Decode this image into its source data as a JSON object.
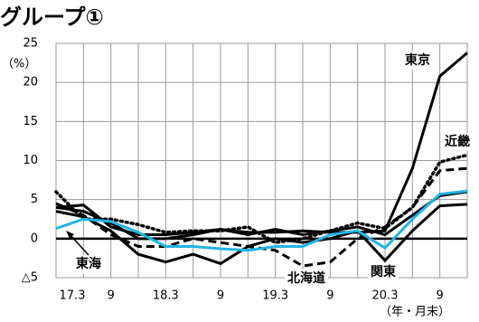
{
  "chart_data": {
    "type": "line",
    "title": "グループ①",
    "y_label": "（%）",
    "x_label": "（年・月末）",
    "categories": [
      "17.3",
      null,
      "9",
      null,
      "18.3",
      null,
      "9",
      null,
      "19.3",
      null,
      "9",
      null,
      "20.3",
      null,
      "9",
      null
    ],
    "ylim": [
      -5,
      25
    ],
    "yticks": [
      {
        "value": -5,
        "label": "△5"
      },
      0,
      5,
      10,
      15,
      20,
      25
    ],
    "grid": true,
    "series": [
      {
        "name": "東京",
        "color": "#000000",
        "style": "solid",
        "values": [
          4,
          4.3,
          1.5,
          0.5,
          0.5,
          0.8,
          1.2,
          0.8,
          0.8,
          1,
          0.8,
          0.8,
          1,
          9,
          20.8,
          23.8
        ]
      },
      {
        "name": "近畿",
        "color": "#000000",
        "style": "dotted",
        "values": [
          6,
          2.5,
          2.5,
          1.8,
          0.8,
          1,
          1,
          1.5,
          -0.5,
          0,
          1,
          2,
          1.3,
          4,
          9.8,
          10.7
        ]
      },
      {
        "name": "北海道",
        "color": "#000000",
        "style": "dashed",
        "values": [
          4.5,
          3,
          0.5,
          -1,
          -1,
          0,
          -0.5,
          -1,
          -1.5,
          -3.5,
          -3,
          0,
          1.5,
          4,
          8.7,
          9
        ]
      },
      {
        "name": "関東",
        "color": "#000000",
        "style": "solid",
        "values": [
          3.5,
          2.8,
          1,
          -2,
          -3,
          -2,
          -3.2,
          -1,
          0,
          -0.5,
          0,
          1,
          -2.8,
          1,
          4.2,
          4.4
        ]
      },
      {
        "name": "東海",
        "color": "#000000",
        "style": "solid",
        "values": [
          4,
          3.5,
          2,
          0,
          0,
          0.5,
          1.2,
          0.5,
          1.2,
          0.5,
          1,
          1.5,
          0.5,
          3,
          5.5,
          6
        ]
      },
      {
        "color": "#1fb4e6",
        "style": "solid",
        "values": [
          1.3,
          2.5,
          2.2,
          0.8,
          -1,
          -1,
          -1.3,
          -1.5,
          -1,
          -1,
          0.5,
          1,
          -1.2,
          2.5,
          5.7,
          6.1
        ]
      }
    ]
  }
}
